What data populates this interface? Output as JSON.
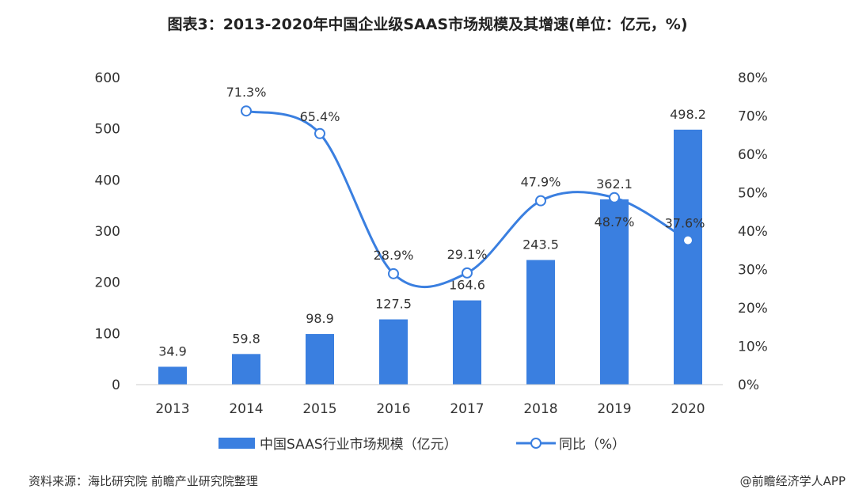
{
  "chart_data": {
    "type": "bar+line",
    "title": "图表3：2013-2020年中国企业级SAAS市场规模及其增速(单位：亿元，%)",
    "categories": [
      "2013",
      "2014",
      "2015",
      "2016",
      "2017",
      "2018",
      "2019",
      "2020"
    ],
    "series": [
      {
        "name": "中国SAAS行业市场规模（亿元）",
        "type": "bar",
        "axis": "left",
        "values": [
          34.9,
          59.8,
          98.9,
          127.5,
          164.6,
          243.5,
          362.1,
          498.2
        ],
        "labels": [
          "34.9",
          "59.8",
          "98.9",
          "127.5",
          "164.6",
          "243.5",
          "362.1",
          "498.2"
        ],
        "color": "#3a7fe0"
      },
      {
        "name": "同比（%）",
        "type": "line",
        "axis": "right",
        "values": [
          null,
          71.3,
          65.4,
          28.9,
          29.1,
          47.9,
          48.7,
          37.6
        ],
        "labels": [
          "",
          "71.3%",
          "65.4%",
          "28.9%",
          "29.1%",
          "47.9%",
          "48.7%",
          "37.6%"
        ],
        "color": "#3a7fe0",
        "smooth": true
      }
    ],
    "ylim_left": [
      0,
      600
    ],
    "yticks_left": [
      "0",
      "100",
      "200",
      "300",
      "400",
      "500",
      "600"
    ],
    "ylim_right": [
      0,
      80
    ],
    "yticks_right": [
      "0%",
      "10%",
      "20%",
      "30%",
      "40%",
      "50%",
      "60%",
      "70%",
      "80%"
    ],
    "grid": false,
    "legend": "bottom"
  },
  "footer": {
    "source": "资料来源：海比研究院 前瞻产业研究院整理",
    "credit": "@前瞻经济学人APP"
  }
}
